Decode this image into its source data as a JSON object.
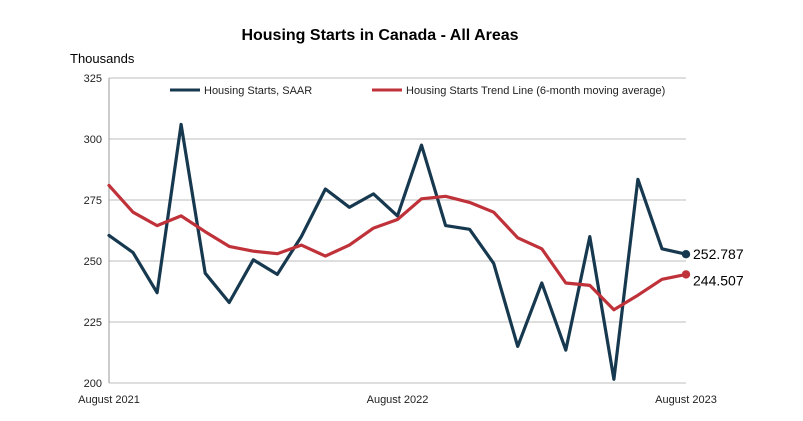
{
  "chart_data": {
    "type": "line",
    "title": "Housing Starts in Canada - All Areas",
    "ylabel": "Thousands",
    "ylim": [
      200,
      325
    ],
    "yticks": [
      200,
      225,
      250,
      275,
      300,
      325
    ],
    "xtick_labels": [
      {
        "index": 0,
        "label": "August 2021"
      },
      {
        "index": 12,
        "label": "August 2022"
      },
      {
        "index": 24,
        "label": "August 2023"
      }
    ],
    "grid": true,
    "legend": "top",
    "series": [
      {
        "name": "Housing Starts, SAAR",
        "color": "#17394f",
        "values": [
          260.5,
          253.5,
          237.0,
          306.0,
          245.0,
          233.0,
          250.5,
          244.5,
          260.0,
          279.5,
          272.0,
          277.5,
          268.5,
          297.5,
          264.5,
          263.0,
          249.0,
          215.0,
          241.0,
          213.5,
          260.0,
          201.5,
          283.5,
          255.0,
          252.787
        ],
        "end_label": "252.787"
      },
      {
        "name": "Housing Starts Trend Line (6-month moving average)",
        "color": "#c0323a",
        "values": [
          281.0,
          270.0,
          264.5,
          268.5,
          262.0,
          256.0,
          254.0,
          253.0,
          256.5,
          252.0,
          256.5,
          263.5,
          267.0,
          275.5,
          276.5,
          274.0,
          270.0,
          259.5,
          255.0,
          241.0,
          240.0,
          230.0,
          236.0,
          242.5,
          244.507
        ],
        "end_label": "244.507"
      }
    ]
  }
}
